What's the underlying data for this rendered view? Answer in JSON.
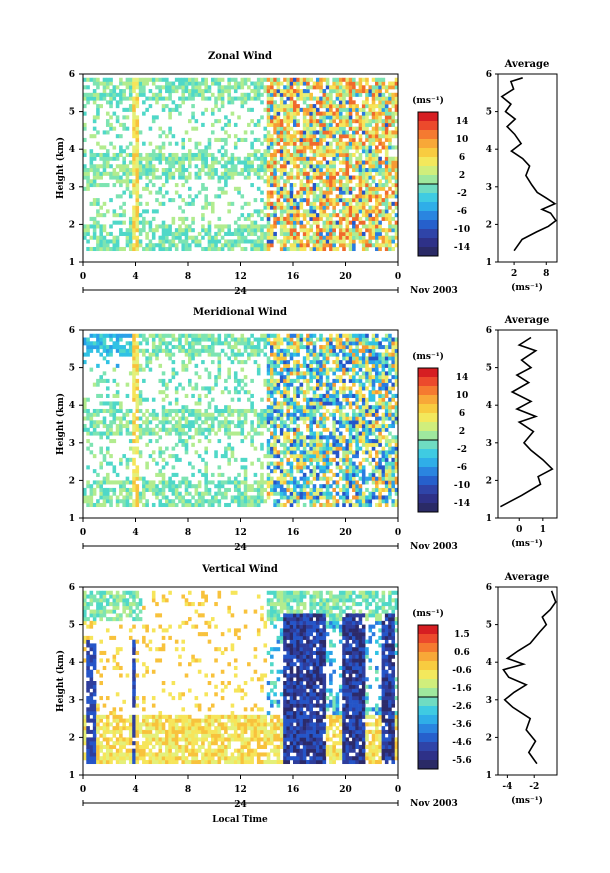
{
  "chart_data": [
    {
      "type": "heatmap",
      "title": "Zonal Wind",
      "ylabel": "Height (km)",
      "x_ticks": [
        "0",
        "4",
        "8",
        "12",
        "16",
        "20",
        "0"
      ],
      "date_tick": "24",
      "date_label": "Nov 2003",
      "y_ticks": [
        "1",
        "2",
        "3",
        "4",
        "5",
        "6"
      ],
      "ylim": [
        1,
        6
      ],
      "colorbar": {
        "unit": "(ms⁻¹)",
        "ticks": [
          "14",
          "10",
          "6",
          "2",
          "-2",
          "-6",
          "-10",
          "-14"
        ],
        "range": [
          -16,
          16
        ]
      },
      "average": {
        "title": "Average",
        "unit": "(ms⁻¹)",
        "x_ticks": [
          "2",
          "8"
        ],
        "xlim": [
          -1,
          10
        ],
        "y_ticks": [
          "1",
          "2",
          "3",
          "4",
          "5",
          "6"
        ],
        "points": [
          [
            2.0,
            1.3
          ],
          [
            3.5,
            1.6
          ],
          [
            6.2,
            1.8
          ],
          [
            8.4,
            1.95
          ],
          [
            9.8,
            2.1
          ],
          [
            8.8,
            2.3
          ],
          [
            7.2,
            2.4
          ],
          [
            9.6,
            2.55
          ],
          [
            8.0,
            2.7
          ],
          [
            6.3,
            2.85
          ],
          [
            5.3,
            3.05
          ],
          [
            4.2,
            3.3
          ],
          [
            4.9,
            3.55
          ],
          [
            3.6,
            3.75
          ],
          [
            1.5,
            3.95
          ],
          [
            3.3,
            4.15
          ],
          [
            2.1,
            4.4
          ],
          [
            0.7,
            4.6
          ],
          [
            2.2,
            4.8
          ],
          [
            0.4,
            5.0
          ],
          [
            1.4,
            5.2
          ],
          [
            -0.3,
            5.4
          ],
          [
            1.9,
            5.6
          ],
          [
            1.4,
            5.8
          ],
          [
            3.6,
            5.9
          ]
        ]
      },
      "data_extent": {
        "x": [
          0,
          24
        ],
        "y": [
          1.3,
          5.9
        ]
      },
      "pattern": "sparse mostly weak values (0-4 m/s) before 14 LT; stronger and more variable winds (up to ~12 m/s, some negative) after 14 LT"
    },
    {
      "type": "heatmap",
      "title": "Meridional Wind",
      "ylabel": "Height (km)",
      "x_ticks": [
        "0",
        "4",
        "8",
        "12",
        "16",
        "20",
        "0"
      ],
      "date_tick": "24",
      "date_label": "Nov 2003",
      "y_ticks": [
        "1",
        "2",
        "3",
        "4",
        "5",
        "6"
      ],
      "ylim": [
        1,
        6
      ],
      "colorbar": {
        "unit": "(ms⁻¹)",
        "ticks": [
          "14",
          "10",
          "6",
          "2",
          "-2",
          "-6",
          "-10",
          "-14"
        ],
        "range": [
          -16,
          16
        ]
      },
      "average": {
        "title": "Average",
        "unit": "(ms⁻¹)",
        "x_ticks": [
          "0",
          "1"
        ],
        "xlim": [
          -0.9,
          1.6
        ],
        "y_ticks": [
          "1",
          "2",
          "3",
          "4",
          "5",
          "6"
        ],
        "points": [
          [
            -0.8,
            1.3
          ],
          [
            0.1,
            1.6
          ],
          [
            0.9,
            1.9
          ],
          [
            0.8,
            2.1
          ],
          [
            1.4,
            2.3
          ],
          [
            1.0,
            2.55
          ],
          [
            0.5,
            2.8
          ],
          [
            0.2,
            3.0
          ],
          [
            0.6,
            3.3
          ],
          [
            0.0,
            3.55
          ],
          [
            0.7,
            3.7
          ],
          [
            -0.1,
            3.9
          ],
          [
            0.5,
            4.1
          ],
          [
            -0.3,
            4.35
          ],
          [
            0.4,
            4.6
          ],
          [
            -0.1,
            4.8
          ],
          [
            0.5,
            5.0
          ],
          [
            0.1,
            5.2
          ],
          [
            0.7,
            5.45
          ],
          [
            0.0,
            5.6
          ],
          [
            0.5,
            5.8
          ]
        ]
      },
      "data_extent": {
        "x": [
          0,
          24
        ],
        "y": [
          1.3,
          5.9
        ]
      },
      "pattern": "weak winds before 14 LT; mixed positive and negative values after 14 LT"
    },
    {
      "type": "heatmap",
      "title": "Vertical Wind",
      "ylabel": "Height (km)",
      "xlabel": "Local Time",
      "x_ticks": [
        "0",
        "4",
        "8",
        "12",
        "16",
        "20",
        "0"
      ],
      "date_tick": "24",
      "date_label": "Nov 2003",
      "y_ticks": [
        "1",
        "2",
        "3",
        "4",
        "5",
        "6"
      ],
      "ylim": [
        1,
        6
      ],
      "colorbar": {
        "unit": "(ms⁻¹)",
        "ticks": [
          "1.5",
          "0.6",
          "-0.6",
          "-1.6",
          "-2.6",
          "-3.6",
          "-4.6",
          "-5.6"
        ],
        "range": [
          -6.1,
          2.0
        ]
      },
      "average": {
        "title": "Average",
        "unit": "(ms⁻¹)",
        "x_ticks": [
          "-4",
          "-2"
        ],
        "xlim": [
          -4.7,
          -0.3
        ],
        "y_ticks": [
          "1",
          "2",
          "3",
          "4",
          "5",
          "6"
        ],
        "points": [
          [
            -1.8,
            1.3
          ],
          [
            -2.4,
            1.6
          ],
          [
            -1.9,
            1.9
          ],
          [
            -2.6,
            2.2
          ],
          [
            -2.3,
            2.5
          ],
          [
            -3.6,
            2.8
          ],
          [
            -4.2,
            3.0
          ],
          [
            -3.5,
            3.2
          ],
          [
            -2.6,
            3.4
          ],
          [
            -3.9,
            3.6
          ],
          [
            -4.3,
            3.8
          ],
          [
            -2.8,
            3.95
          ],
          [
            -4.0,
            4.1
          ],
          [
            -3.2,
            4.3
          ],
          [
            -2.3,
            4.5
          ],
          [
            -1.6,
            4.8
          ],
          [
            -1.1,
            5.0
          ],
          [
            -1.4,
            5.2
          ],
          [
            -0.8,
            5.4
          ],
          [
            -0.4,
            5.6
          ],
          [
            -0.7,
            5.9
          ]
        ]
      },
      "data_extent": {
        "x": [
          0,
          24
        ],
        "y": [
          1.3,
          5.9
        ]
      },
      "pattern": "weak near-zero values in early hours and low heights; strong downward motion (about -5 m/s) in columns after 14 LT"
    }
  ]
}
